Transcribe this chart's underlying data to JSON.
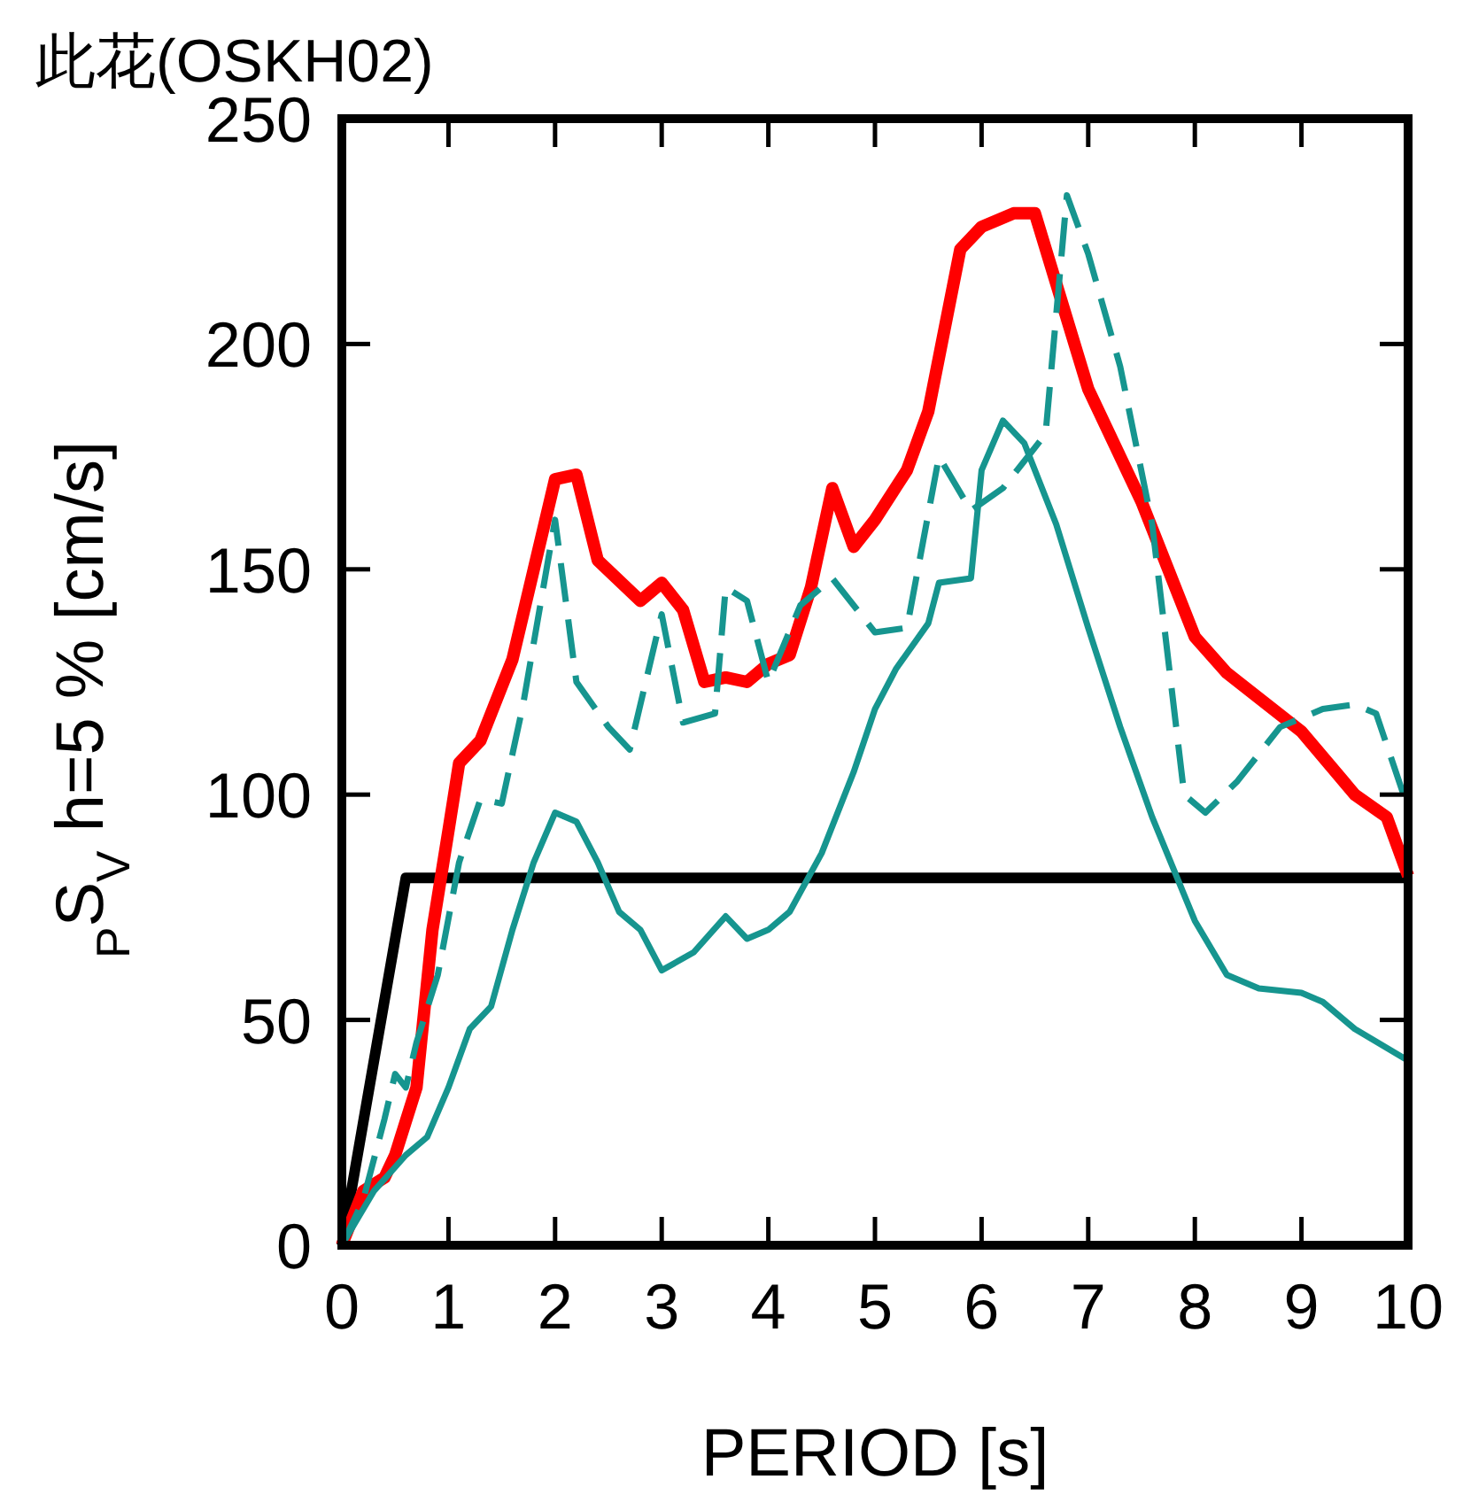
{
  "chart_data": {
    "type": "line",
    "title": "此花(OSKH02)",
    "xlabel": "PERIOD [s]",
    "ylabel": "$_{P}$S$_{V}$ h=5 % [cm/s]",
    "xlim": [
      0,
      10
    ],
    "xticks": [
      0,
      1,
      2,
      3,
      4,
      5,
      6,
      7,
      8,
      9,
      10
    ],
    "ylim": [
      0,
      250
    ],
    "yticks": [
      0,
      50,
      100,
      150,
      200,
      250
    ],
    "grid": false,
    "marker": "none",
    "series": [
      {
        "color": "#000000",
        "line_style": "solid",
        "x": [
          0,
          0.6,
          10
        ],
        "values": [
          0,
          81.5,
          81.5
        ]
      },
      {
        "color": "#ff0000",
        "line_style": "solid",
        "x": [
          0,
          0.2,
          0.4,
          0.5,
          0.7,
          0.85,
          1,
          1.1,
          1.3,
          1.6,
          1.8,
          2,
          2.2,
          2.4,
          2.8,
          3,
          3.2,
          3.4,
          3.6,
          3.8,
          4,
          4.2,
          4.4,
          4.6,
          4.8,
          5,
          5.3,
          5.5,
          5.8,
          6,
          6.3,
          6.5,
          7,
          7.5,
          8,
          8.3,
          9,
          9.5,
          9.8,
          10
        ],
        "values": [
          0,
          12,
          15,
          20,
          35,
          70,
          92,
          107,
          112,
          130,
          150,
          170,
          171,
          152,
          143,
          147,
          141,
          125,
          126,
          125,
          129,
          131,
          146,
          168,
          155,
          161,
          172,
          185,
          221,
          226,
          229,
          229,
          190,
          165,
          135,
          127,
          114,
          100,
          95,
          82
        ]
      },
      {
        "color": "#16958f",
        "line_style": "dashed",
        "x": [
          0,
          0.2,
          0.4,
          0.5,
          0.6,
          0.7,
          0.9,
          1.1,
          1.3,
          1.5,
          1.7,
          2,
          2.2,
          2.5,
          2.7,
          3,
          3.2,
          3.5,
          3.6,
          3.8,
          4,
          4.3,
          4.6,
          5,
          5.3,
          5.6,
          5.9,
          6.2,
          6.6,
          6.8,
          7,
          7.3,
          7.6,
          7.9,
          8.1,
          8.4,
          8.8,
          9.2,
          9.5,
          9.7,
          10
        ],
        "values": [
          0,
          10,
          28,
          38,
          35,
          45,
          60,
          85,
          99,
          98,
          120,
          161,
          125,
          115,
          110,
          140,
          116,
          118,
          146,
          143,
          125,
          142,
          148,
          136,
          137,
          175,
          163,
          168,
          180,
          233,
          220,
          195,
          160,
          100,
          96,
          103,
          115,
          119,
          120,
          118,
          97
        ]
      },
      {
        "color": "#16958f",
        "line_style": "solid",
        "x": [
          0,
          0.3,
          0.6,
          0.8,
          1,
          1.2,
          1.4,
          1.6,
          1.8,
          2,
          2.2,
          2.4,
          2.6,
          2.8,
          3,
          3.3,
          3.6,
          3.8,
          4,
          4.2,
          4.5,
          4.8,
          5,
          5.2,
          5.5,
          5.6,
          5.9,
          6,
          6.2,
          6.4,
          6.7,
          7,
          7.3,
          7.6,
          8,
          8.3,
          8.6,
          9,
          9.2,
          9.5,
          10
        ],
        "values": [
          0,
          12,
          20,
          24,
          35,
          48,
          53,
          70,
          85,
          96,
          94,
          85,
          74,
          70,
          61,
          65,
          73,
          68,
          70,
          74,
          87,
          105,
          119,
          128,
          138,
          147,
          148,
          172,
          183,
          178,
          160,
          137,
          115,
          95,
          72,
          60,
          57,
          56,
          54,
          48,
          41
        ]
      }
    ]
  }
}
